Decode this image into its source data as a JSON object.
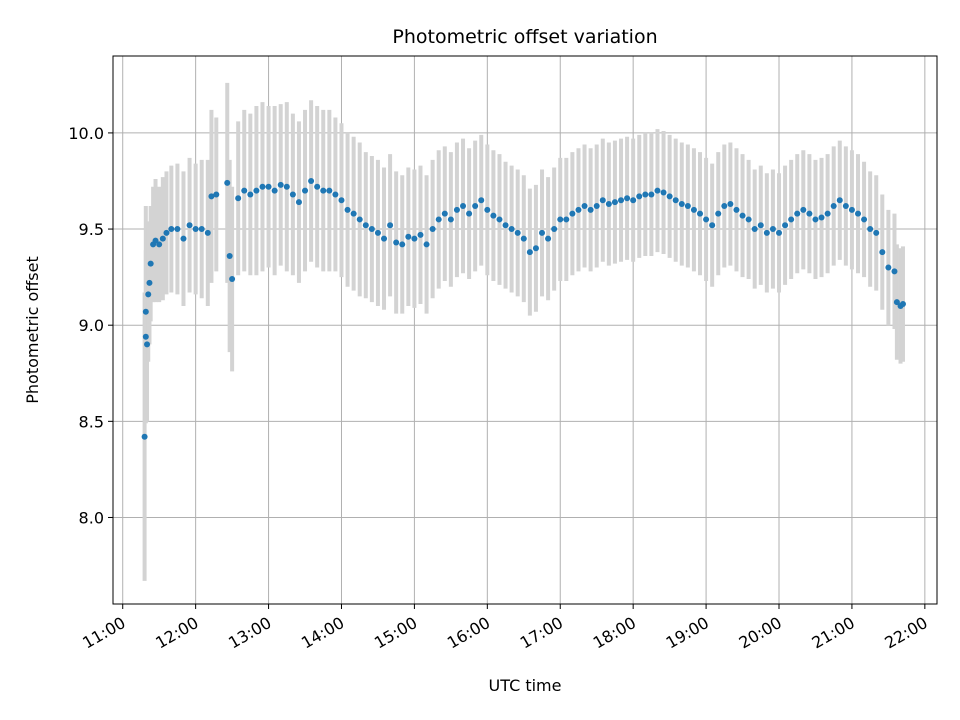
{
  "chart_data": {
    "type": "scatter",
    "title": "Photometric offset variation",
    "xlabel": "UTC time",
    "ylabel": "Photometric offset",
    "xlim": [
      "10:52",
      "22:10"
    ],
    "ylim": [
      7.55,
      10.4
    ],
    "x_ticks": [
      "11:00",
      "12:00",
      "13:00",
      "14:00",
      "15:00",
      "16:00",
      "17:00",
      "18:00",
      "19:00",
      "20:00",
      "21:00",
      "22:00"
    ],
    "y_ticks": [
      "8.0",
      "8.5",
      "9.0",
      "9.5",
      "10.0"
    ],
    "grid": true,
    "colors": {
      "points": "#1f77b4",
      "errorbars": "#d3d3d3",
      "grid": "#b0b0b0"
    },
    "series": [
      {
        "x": [
          "11:18",
          "11:19",
          "11:19",
          "11:20",
          "11:21",
          "11:22",
          "11:23",
          "11:25",
          "11:27",
          "11:30",
          "11:33",
          "11:36",
          "11:40",
          "11:45",
          "11:50",
          "11:55",
          "12:00",
          "12:05",
          "12:10",
          "12:13",
          "12:17",
          "12:26",
          "12:28",
          "12:30",
          "12:35",
          "12:40",
          "12:45",
          "12:50",
          "12:55",
          "13:00",
          "13:05",
          "13:10",
          "13:15",
          "13:20",
          "13:25",
          "13:30",
          "13:35",
          "13:40",
          "13:45",
          "13:50",
          "13:55",
          "14:00",
          "14:05",
          "14:10",
          "14:15",
          "14:20",
          "14:25",
          "14:30",
          "14:35",
          "14:40",
          "14:45",
          "14:50",
          "14:55",
          "15:00",
          "15:05",
          "15:10",
          "15:15",
          "15:20",
          "15:25",
          "15:30",
          "15:35",
          "15:40",
          "15:45",
          "15:50",
          "15:55",
          "16:00",
          "16:05",
          "16:10",
          "16:15",
          "16:20",
          "16:25",
          "16:30",
          "16:35",
          "16:40",
          "16:45",
          "16:50",
          "16:55",
          "17:00",
          "17:05",
          "17:10",
          "17:15",
          "17:20",
          "17:25",
          "17:30",
          "17:35",
          "17:40",
          "17:45",
          "17:50",
          "17:55",
          "18:00",
          "18:05",
          "18:10",
          "18:15",
          "18:20",
          "18:25",
          "18:30",
          "18:35",
          "18:40",
          "18:45",
          "18:50",
          "18:55",
          "19:00",
          "19:05",
          "19:10",
          "19:15",
          "19:20",
          "19:25",
          "19:30",
          "19:35",
          "19:40",
          "19:45",
          "19:50",
          "19:55",
          "20:00",
          "20:05",
          "20:10",
          "20:15",
          "20:20",
          "20:25",
          "20:30",
          "20:35",
          "20:40",
          "20:45",
          "20:50",
          "20:55",
          "21:00",
          "21:05",
          "21:10",
          "21:15",
          "21:20",
          "21:25",
          "21:30",
          "21:35",
          "21:37",
          "21:40",
          "21:42"
        ],
        "y": [
          8.42,
          9.07,
          8.94,
          8.9,
          9.16,
          9.22,
          9.32,
          9.42,
          9.44,
          9.42,
          9.45,
          9.48,
          9.5,
          9.5,
          9.45,
          9.52,
          9.5,
          9.5,
          9.48,
          9.67,
          9.68,
          9.74,
          9.36,
          9.24,
          9.66,
          9.7,
          9.68,
          9.7,
          9.72,
          9.72,
          9.7,
          9.73,
          9.72,
          9.68,
          9.64,
          9.7,
          9.75,
          9.72,
          9.7,
          9.7,
          9.68,
          9.65,
          9.6,
          9.58,
          9.55,
          9.52,
          9.5,
          9.48,
          9.45,
          9.52,
          9.43,
          9.42,
          9.46,
          9.45,
          9.47,
          9.42,
          9.5,
          9.55,
          9.58,
          9.55,
          9.6,
          9.62,
          9.58,
          9.62,
          9.65,
          9.6,
          9.57,
          9.55,
          9.52,
          9.5,
          9.48,
          9.45,
          9.38,
          9.4,
          9.48,
          9.45,
          9.5,
          9.55,
          9.55,
          9.58,
          9.6,
          9.62,
          9.6,
          9.62,
          9.65,
          9.63,
          9.64,
          9.65,
          9.66,
          9.65,
          9.67,
          9.68,
          9.68,
          9.7,
          9.69,
          9.67,
          9.65,
          9.63,
          9.62,
          9.6,
          9.58,
          9.55,
          9.52,
          9.58,
          9.62,
          9.63,
          9.6,
          9.57,
          9.55,
          9.5,
          9.52,
          9.48,
          9.5,
          9.48,
          9.52,
          9.55,
          9.58,
          9.6,
          9.58,
          9.55,
          9.56,
          9.58,
          9.62,
          9.65,
          9.62,
          9.6,
          9.58,
          9.55,
          9.5,
          9.48,
          9.38,
          9.3,
          9.28,
          9.12,
          9.1,
          9.11
        ],
        "err": [
          0.75,
          0.55,
          0.45,
          0.4,
          0.35,
          0.32,
          0.3,
          0.3,
          0.32,
          0.3,
          0.32,
          0.32,
          0.33,
          0.34,
          0.35,
          0.35,
          0.34,
          0.36,
          0.38,
          0.45,
          0.4,
          0.52,
          0.5,
          0.48,
          0.4,
          0.42,
          0.42,
          0.44,
          0.44,
          0.42,
          0.44,
          0.42,
          0.44,
          0.42,
          0.42,
          0.42,
          0.42,
          0.42,
          0.42,
          0.42,
          0.4,
          0.4,
          0.4,
          0.4,
          0.4,
          0.38,
          0.38,
          0.38,
          0.37,
          0.37,
          0.37,
          0.36,
          0.36,
          0.36,
          0.36,
          0.36,
          0.36,
          0.36,
          0.35,
          0.35,
          0.35,
          0.35,
          0.34,
          0.34,
          0.34,
          0.34,
          0.34,
          0.34,
          0.33,
          0.33,
          0.33,
          0.33,
          0.33,
          0.33,
          0.33,
          0.32,
          0.32,
          0.32,
          0.32,
          0.32,
          0.32,
          0.32,
          0.32,
          0.32,
          0.32,
          0.32,
          0.32,
          0.32,
          0.32,
          0.32,
          0.32,
          0.32,
          0.32,
          0.32,
          0.32,
          0.32,
          0.32,
          0.32,
          0.32,
          0.32,
          0.32,
          0.32,
          0.32,
          0.32,
          0.32,
          0.32,
          0.32,
          0.32,
          0.31,
          0.31,
          0.31,
          0.31,
          0.31,
          0.31,
          0.31,
          0.31,
          0.31,
          0.31,
          0.31,
          0.31,
          0.31,
          0.31,
          0.31,
          0.31,
          0.31,
          0.31,
          0.31,
          0.3,
          0.3,
          0.3,
          0.3,
          0.3,
          0.3,
          0.3,
          0.3,
          0.3
        ]
      }
    ]
  }
}
